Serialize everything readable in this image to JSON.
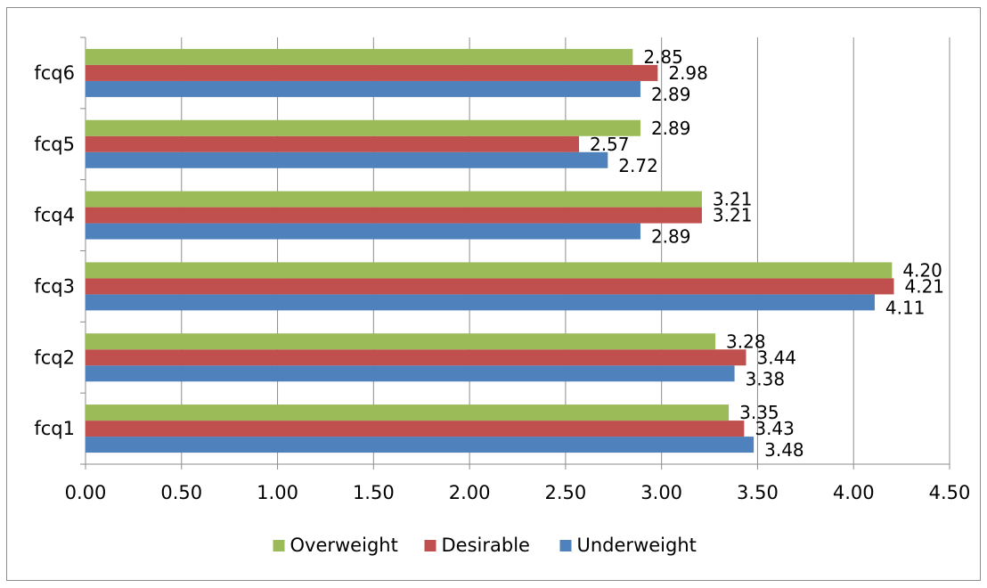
{
  "chart_data": {
    "type": "bar",
    "orientation": "horizontal",
    "categories": [
      "fcq1",
      "fcq2",
      "fcq3",
      "fcq4",
      "fcq5",
      "fcq6"
    ],
    "series": [
      {
        "name": "Underweight",
        "color": "#4f81bd",
        "values": [
          3.48,
          3.38,
          4.11,
          2.89,
          2.72,
          2.89
        ],
        "labels": [
          "3.48",
          "3.38",
          "4.11",
          "2.89",
          "2.72",
          "2.89"
        ]
      },
      {
        "name": "Desirable",
        "color": "#c0504d",
        "values": [
          3.43,
          3.44,
          4.21,
          3.21,
          2.57,
          2.98
        ],
        "labels": [
          "3.43",
          "3.44",
          "4.21",
          "3.21",
          "2.57",
          "2.98"
        ]
      },
      {
        "name": "Overweight",
        "color": "#9bbb59",
        "values": [
          3.35,
          3.28,
          4.2,
          3.21,
          2.89,
          2.85
        ],
        "labels": [
          "3.35",
          "3.28",
          "4.20",
          "3.21",
          "2.89",
          "2.85"
        ]
      }
    ],
    "xlim": [
      0,
      4.5
    ],
    "xticks": [
      0,
      0.5,
      1,
      1.5,
      2,
      2.5,
      3,
      3.5,
      4,
      4.5
    ],
    "xtick_labels": [
      "0.00",
      "0.50",
      "1.00",
      "1.50",
      "2.00",
      "2.50",
      "3.00",
      "3.50",
      "4.00",
      "4.50"
    ],
    "grid": "vertical",
    "legend_position": "bottom",
    "legend_order": [
      "Overweight",
      "Desirable",
      "Underweight"
    ],
    "title": "",
    "xlabel": "",
    "ylabel": ""
  }
}
